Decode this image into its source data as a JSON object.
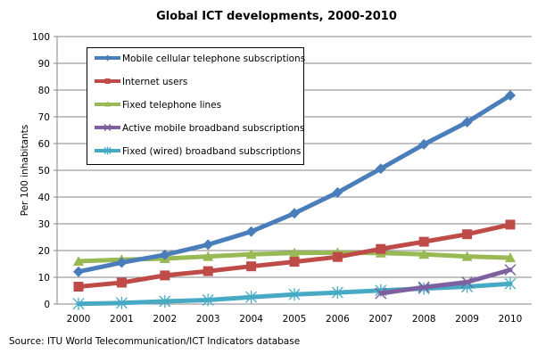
{
  "chart_data": {
    "type": "line",
    "title": "Global ICT developments, 2000-2010",
    "xlabel": "",
    "ylabel": "Per 100 inhabitants",
    "ylim": [
      0,
      100
    ],
    "yticks": [
      "0",
      "10",
      "20",
      "30",
      "40",
      "50",
      "60",
      "70",
      "80",
      "90",
      "100"
    ],
    "grid": true,
    "legend_position": "top-left",
    "categories": [
      "2000",
      "2001",
      "2002",
      "2003",
      "2004",
      "2005",
      "2006",
      "2007",
      "2008",
      "2009",
      "2010"
    ],
    "series": [
      {
        "name": "Mobile cellular telephone subscriptions",
        "color": "#4a7ebb",
        "marker": "diamond",
        "values": [
          12.1,
          15.5,
          18.4,
          22.2,
          27.1,
          33.9,
          41.7,
          50.6,
          59.7,
          68.0,
          78.0
        ]
      },
      {
        "name": "Internet users",
        "color": "#be4b48",
        "marker": "square",
        "values": [
          6.5,
          8.0,
          10.7,
          12.3,
          14.1,
          15.8,
          17.6,
          20.6,
          23.3,
          26.1,
          29.7
        ]
      },
      {
        "name": "Fixed telephone lines",
        "color": "#98b954",
        "marker": "triangle",
        "values": [
          16.0,
          16.6,
          17.0,
          17.8,
          18.6,
          19.1,
          19.2,
          19.1,
          18.6,
          17.8,
          17.3
        ]
      },
      {
        "name": "Active mobile broadband subscriptions",
        "color": "#7d60a0",
        "marker": "x",
        "values": [
          null,
          null,
          null,
          null,
          null,
          null,
          null,
          4.0,
          6.3,
          8.2,
          12.8
        ]
      },
      {
        "name": "Fixed (wired) broadband subscriptions",
        "color": "#46aac5",
        "marker": "star",
        "values": [
          0.1,
          0.4,
          1.0,
          1.5,
          2.6,
          3.6,
          4.3,
          5.1,
          5.8,
          6.5,
          7.6
        ]
      }
    ]
  },
  "source_note": "Source:  ITU World Telecommunication/ICT Indicators database"
}
